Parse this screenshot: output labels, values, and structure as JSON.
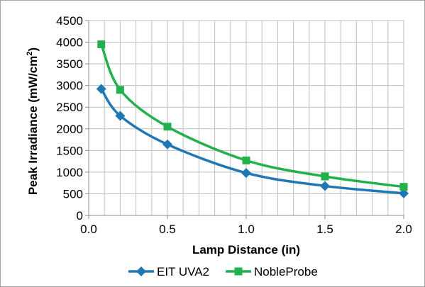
{
  "chart_data": {
    "type": "line",
    "title": "",
    "xlabel": "Lamp Distance (in)",
    "ylabel_main": "Peak Irradiance (mW/cm",
    "ylabel_sup": "2",
    "ylabel_tail": ")",
    "xlim": [
      0,
      2.0
    ],
    "ylim": [
      0,
      4500
    ],
    "x_ticks": [
      0,
      0.5,
      1.0,
      1.5,
      2.0
    ],
    "x_tick_labels": [
      "0.0",
      "0.5",
      "1.0",
      "1.5",
      "2.0"
    ],
    "y_ticks": [
      0,
      500,
      1000,
      1500,
      2000,
      2500,
      3000,
      3500,
      4000,
      4500
    ],
    "y_tick_labels": [
      "0",
      "500",
      "1000",
      "1500",
      "2000",
      "2500",
      "3000",
      "3500",
      "4000",
      "4500"
    ],
    "x_minor_step": 0.1,
    "grid": true,
    "legend_position": "bottom",
    "series": [
      {
        "name": "EIT UVA2",
        "color": "#1f78b4",
        "marker": "diamond",
        "x": [
          0.08,
          0.2,
          0.5,
          1.0,
          1.5,
          2.0
        ],
        "y": [
          2920,
          2300,
          1640,
          980,
          680,
          510
        ]
      },
      {
        "name": "NobleProbe",
        "color": "#22b14c",
        "marker": "square",
        "x": [
          0.08,
          0.2,
          0.5,
          1.0,
          1.5,
          2.0
        ],
        "y": [
          3950,
          2900,
          2050,
          1270,
          900,
          660
        ]
      }
    ]
  }
}
